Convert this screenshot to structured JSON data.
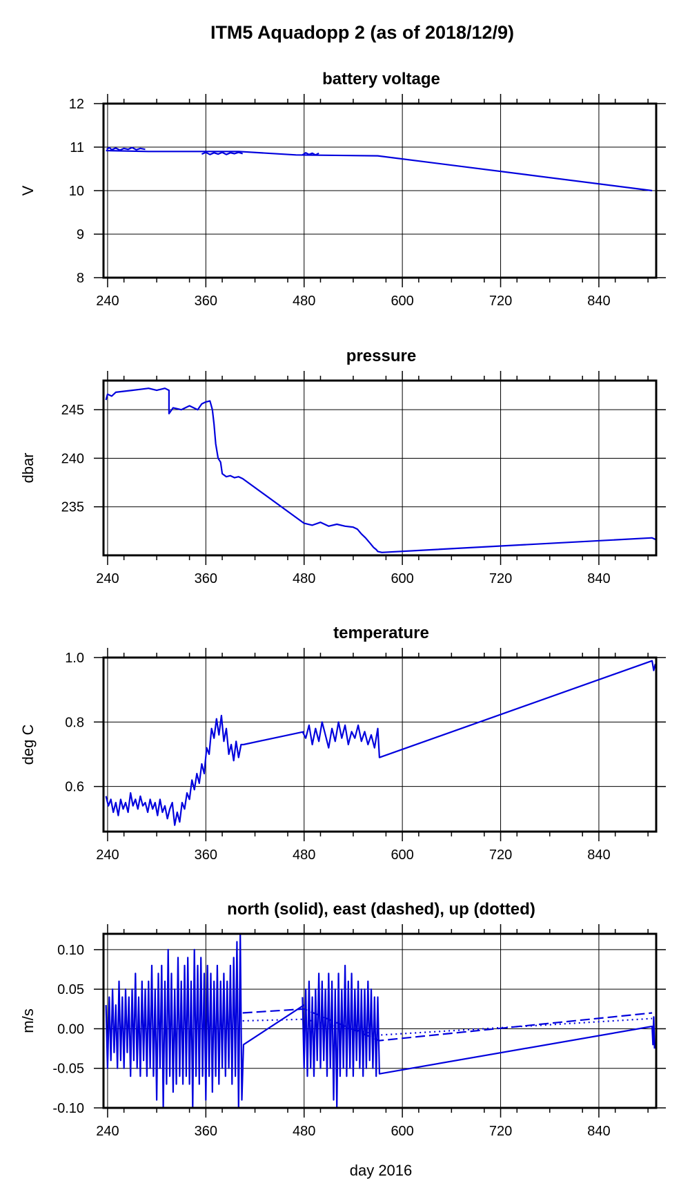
{
  "figure": {
    "title": "ITM5 Aquadopp 2 (as of 2018/12/9)",
    "xlabel": "day 2016",
    "line_color": "#0000dd"
  },
  "chart_data": [
    {
      "type": "line",
      "title": "battery voltage",
      "ylabel": "V",
      "xlim": [
        235,
        910
      ],
      "ylim": [
        8,
        12
      ],
      "x_ticks": [
        240,
        360,
        480,
        600,
        720,
        840
      ],
      "y_ticks": [
        8,
        9,
        10,
        11,
        12
      ],
      "y_tick_labels": [
        "8",
        "9",
        "10",
        "11",
        "12"
      ],
      "grid": true,
      "series": [
        {
          "style": "solid",
          "x": [
            238,
            290,
            350,
            400,
            470,
            570,
            905
          ],
          "y": [
            10.92,
            10.9,
            10.9,
            10.9,
            10.82,
            10.8,
            10.0
          ]
        },
        {
          "style": "solid",
          "x": [
            239,
            242,
            245,
            250,
            255,
            260,
            265,
            270,
            275,
            280,
            286
          ],
          "y": [
            10.95,
            10.99,
            10.94,
            10.98,
            10.93,
            10.97,
            10.95,
            10.99,
            10.94,
            10.97,
            10.95
          ]
        },
        {
          "style": "solid",
          "x": [
            355,
            360,
            365,
            370,
            375,
            380,
            385,
            390,
            395,
            400,
            405
          ],
          "y": [
            10.84,
            10.88,
            10.83,
            10.87,
            10.84,
            10.88,
            10.83,
            10.87,
            10.85,
            10.88,
            10.85
          ]
        },
        {
          "style": "solid",
          "x": [
            478,
            482,
            486,
            490,
            494,
            498
          ],
          "y": [
            10.82,
            10.87,
            10.83,
            10.86,
            10.82,
            10.86
          ]
        }
      ]
    },
    {
      "type": "line",
      "title": "pressure",
      "ylabel": "dbar",
      "xlim": [
        235,
        910
      ],
      "ylim": [
        230,
        248
      ],
      "x_ticks": [
        240,
        360,
        480,
        600,
        720,
        840
      ],
      "y_ticks": [
        235,
        240,
        245
      ],
      "y_tick_labels": [
        "235",
        "240",
        "245"
      ],
      "grid": true,
      "series": [
        {
          "style": "solid",
          "x": [
            238,
            240,
            245,
            250,
            260,
            270,
            280,
            290,
            300,
            310,
            315,
            315,
            320,
            330,
            340,
            350,
            355,
            360,
            365,
            368,
            370,
            372,
            375,
            378,
            380,
            385,
            390,
            395,
            400,
            405,
            480,
            490,
            500,
            510,
            520,
            530,
            540,
            545,
            550,
            555,
            560,
            565,
            568,
            570,
            575,
            905,
            910
          ],
          "y": [
            246.0,
            246.6,
            246.4,
            246.8,
            246.9,
            247.0,
            247.1,
            247.2,
            247.0,
            247.2,
            247.0,
            244.6,
            245.2,
            245.0,
            245.4,
            245.0,
            245.6,
            245.8,
            245.9,
            245.0,
            243.5,
            241.5,
            240.0,
            239.6,
            238.4,
            238.1,
            238.2,
            238.0,
            238.1,
            237.9,
            233.3,
            233.1,
            233.4,
            233.0,
            233.2,
            233.0,
            232.9,
            232.7,
            232.2,
            231.8,
            231.3,
            230.8,
            230.6,
            230.4,
            230.3,
            231.8,
            231.6
          ]
        }
      ]
    },
    {
      "type": "line",
      "title": "temperature",
      "ylabel": "deg C",
      "xlim": [
        235,
        910
      ],
      "ylim": [
        0.46,
        1.0
      ],
      "x_ticks": [
        240,
        360,
        480,
        600,
        720,
        840
      ],
      "y_ticks": [
        0.6,
        0.8,
        1.0
      ],
      "y_tick_labels": [
        "0.6",
        "0.8",
        "1.0"
      ],
      "grid": true,
      "series": [
        {
          "style": "solid",
          "x": [
            238,
            241,
            244,
            247,
            250,
            253,
            256,
            259,
            262,
            265,
            268,
            271,
            274,
            277,
            280,
            283,
            286,
            289,
            292,
            295,
            298,
            301,
            304,
            307,
            310,
            313,
            316,
            319,
            322,
            325,
            328,
            331,
            334,
            337,
            340,
            343,
            346,
            349,
            352,
            355,
            358,
            361,
            364,
            367,
            370,
            373,
            376,
            379,
            382,
            385,
            388,
            391,
            394,
            397,
            400,
            403,
            406,
            480
          ],
          "y": [
            0.57,
            0.54,
            0.56,
            0.52,
            0.55,
            0.51,
            0.56,
            0.53,
            0.55,
            0.52,
            0.58,
            0.54,
            0.56,
            0.53,
            0.57,
            0.54,
            0.55,
            0.52,
            0.56,
            0.53,
            0.55,
            0.51,
            0.56,
            0.52,
            0.54,
            0.5,
            0.53,
            0.55,
            0.48,
            0.52,
            0.49,
            0.55,
            0.53,
            0.58,
            0.56,
            0.62,
            0.59,
            0.64,
            0.61,
            0.67,
            0.64,
            0.72,
            0.7,
            0.78,
            0.75,
            0.81,
            0.76,
            0.82,
            0.74,
            0.78,
            0.7,
            0.73,
            0.68,
            0.74,
            0.69,
            0.73,
            0.73,
            0.77
          ]
        },
        {
          "style": "solid",
          "x": [
            478,
            482,
            486,
            490,
            494,
            498,
            502,
            506,
            510,
            514,
            518,
            522,
            526,
            530,
            534,
            538,
            542,
            546,
            550,
            554,
            558,
            562,
            566,
            570,
            572,
            905,
            907,
            909
          ],
          "y": [
            0.77,
            0.75,
            0.79,
            0.73,
            0.78,
            0.74,
            0.8,
            0.76,
            0.72,
            0.78,
            0.74,
            0.8,
            0.75,
            0.79,
            0.73,
            0.77,
            0.75,
            0.79,
            0.74,
            0.77,
            0.73,
            0.76,
            0.72,
            0.78,
            0.69,
            0.99,
            0.96,
            0.98
          ]
        }
      ]
    },
    {
      "type": "line",
      "title": "north (solid), east (dashed), up (dotted)",
      "ylabel": "m/s",
      "xlim": [
        235,
        910
      ],
      "ylim": [
        -0.1,
        0.12
      ],
      "x_ticks": [
        240,
        360,
        480,
        600,
        720,
        840
      ],
      "y_ticks": [
        -0.1,
        -0.05,
        0.0,
        0.05,
        0.1
      ],
      "y_tick_labels": [
        "-0.10",
        "-0.05",
        "0.00",
        "0.05",
        "0.10"
      ],
      "grid": true,
      "series": [
        {
          "style": "solid",
          "x": [
            238,
            240,
            242,
            244,
            246,
            248,
            250,
            252,
            254,
            256,
            258,
            260,
            262,
            264,
            266,
            268,
            270,
            272,
            274,
            276,
            278,
            280,
            282,
            284,
            286,
            288,
            290,
            292,
            294,
            296,
            298,
            300,
            302,
            304,
            306,
            308,
            310,
            312,
            314,
            316,
            318,
            320,
            322,
            324,
            326,
            328,
            330,
            332,
            334,
            336,
            338,
            340,
            342,
            344,
            346,
            348,
            350,
            352,
            354,
            356,
            358,
            360,
            362,
            364,
            366,
            368,
            370,
            372,
            374,
            376,
            378,
            380,
            382,
            384,
            386,
            388,
            390,
            392,
            394,
            396,
            398,
            400,
            402,
            404,
            406,
            480
          ],
          "y": [
            0.03,
            -0.05,
            0.04,
            -0.04,
            0.05,
            -0.03,
            0.03,
            -0.05,
            0.06,
            -0.04,
            0.04,
            -0.05,
            0.05,
            -0.03,
            0.04,
            -0.06,
            0.05,
            -0.04,
            0.07,
            -0.05,
            0.04,
            -0.06,
            0.06,
            -0.04,
            0.05,
            -0.06,
            0.06,
            -0.05,
            0.08,
            -0.06,
            0.05,
            -0.09,
            0.07,
            -0.05,
            0.08,
            -0.1,
            0.06,
            -0.07,
            0.1,
            -0.06,
            0.07,
            -0.08,
            0.05,
            -0.07,
            0.09,
            -0.06,
            0.06,
            -0.07,
            0.08,
            -0.06,
            0.09,
            -0.07,
            0.06,
            -0.1,
            0.1,
            -0.06,
            0.08,
            -0.07,
            0.09,
            -0.06,
            0.07,
            -0.09,
            0.08,
            -0.06,
            0.07,
            -0.08,
            0.06,
            -0.06,
            0.08,
            -0.07,
            0.06,
            -0.05,
            0.07,
            -0.06,
            0.06,
            -0.05,
            0.08,
            -0.07,
            0.09,
            -0.06,
            0.11,
            -0.1,
            0.12,
            -0.09,
            -0.02,
            0.03
          ]
        },
        {
          "style": "solid",
          "x": [
            478,
            480,
            482,
            484,
            486,
            488,
            490,
            492,
            494,
            496,
            498,
            500,
            502,
            504,
            506,
            508,
            510,
            512,
            514,
            516,
            518,
            520,
            522,
            524,
            526,
            528,
            530,
            532,
            534,
            536,
            538,
            540,
            542,
            544,
            546,
            548,
            550,
            552,
            554,
            556,
            558,
            560,
            562,
            564,
            566,
            568,
            570,
            572,
            905,
            906,
            907,
            908
          ],
          "y": [
            0.04,
            -0.05,
            0.05,
            -0.06,
            0.06,
            -0.05,
            0.04,
            -0.06,
            0.05,
            -0.04,
            0.07,
            -0.05,
            0.06,
            -0.04,
            0.05,
            -0.06,
            0.07,
            -0.05,
            0.06,
            -0.09,
            0.05,
            -0.1,
            0.07,
            -0.06,
            0.05,
            -0.05,
            0.08,
            -0.06,
            0.06,
            -0.05,
            0.07,
            -0.06,
            0.05,
            -0.04,
            0.06,
            -0.05,
            0.05,
            -0.06,
            0.05,
            -0.05,
            0.06,
            -0.04,
            0.05,
            -0.05,
            0.04,
            -0.06,
            0.04,
            -0.057,
            0.003,
            -0.02,
            0.015,
            -0.025
          ]
        },
        {
          "style": "dashed",
          "x": [
            405,
            480,
            572,
            905
          ],
          "y": [
            0.02,
            0.025,
            -0.015,
            0.02
          ]
        },
        {
          "style": "dotted",
          "x": [
            405,
            480,
            572,
            905
          ],
          "y": [
            0.01,
            0.012,
            -0.008,
            0.013
          ]
        }
      ]
    }
  ]
}
